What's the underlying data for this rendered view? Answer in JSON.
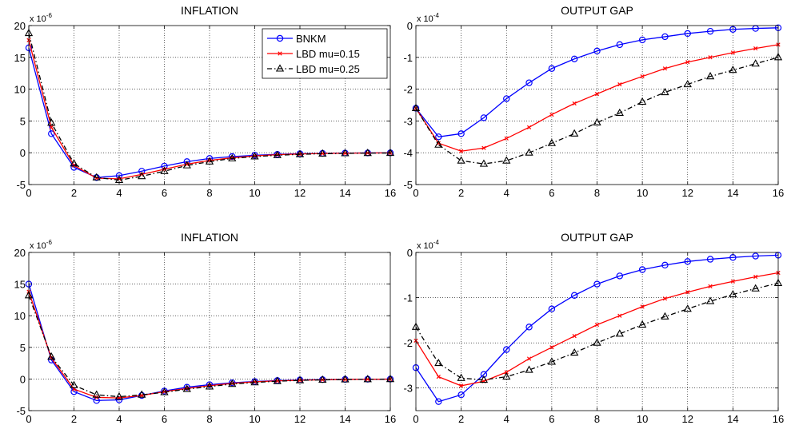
{
  "chart_data": [
    {
      "type": "line",
      "title": "INFLATION",
      "multiplier": {
        "base": "x 10",
        "exp": "-6"
      },
      "xlim": [
        0,
        16
      ],
      "ylim": [
        -5,
        20
      ],
      "xticks": [
        0,
        2,
        4,
        6,
        8,
        10,
        12,
        14,
        16
      ],
      "yticks": [
        -5,
        0,
        5,
        10,
        15,
        20
      ],
      "grid": true,
      "legend": {
        "placement": "top-right",
        "entries": [
          "BNKM",
          "LBD mu=0.15",
          "LBD mu=0.25"
        ]
      },
      "x": [
        0,
        1,
        2,
        3,
        4,
        5,
        6,
        7,
        8,
        9,
        10,
        11,
        12,
        13,
        14,
        15,
        16
      ],
      "series": [
        {
          "name": "BNKM",
          "color": "#0000ff",
          "marker": "circle",
          "dash": "solid",
          "values": [
            16.5,
            3.0,
            -2.3,
            -3.9,
            -3.6,
            -2.9,
            -2.1,
            -1.4,
            -0.9,
            -0.6,
            -0.4,
            -0.25,
            -0.15,
            -0.1,
            -0.05,
            -0.03,
            -0.02
          ]
        },
        {
          "name": "LBD mu=0.15",
          "color": "#ff0000",
          "marker": "x",
          "dash": "solid",
          "values": [
            17.7,
            4.0,
            -2.0,
            -4.0,
            -4.1,
            -3.4,
            -2.6,
            -1.8,
            -1.2,
            -0.8,
            -0.5,
            -0.3,
            -0.2,
            -0.12,
            -0.07,
            -0.04,
            -0.02
          ]
        },
        {
          "name": "LBD mu=0.25",
          "color": "#000000",
          "marker": "triangle",
          "dash": "dashdot",
          "values": [
            18.8,
            4.7,
            -1.7,
            -3.9,
            -4.3,
            -3.7,
            -2.9,
            -2.0,
            -1.4,
            -0.9,
            -0.6,
            -0.4,
            -0.25,
            -0.15,
            -0.1,
            -0.06,
            -0.04
          ]
        }
      ]
    },
    {
      "type": "line",
      "title": "OUTPUT GAP",
      "multiplier": {
        "base": "x 10",
        "exp": "-4"
      },
      "xlim": [
        0,
        16
      ],
      "ylim": [
        -5,
        0
      ],
      "xticks": [
        0,
        2,
        4,
        6,
        8,
        10,
        12,
        14,
        16
      ],
      "yticks": [
        -5,
        -4,
        -3,
        -2,
        -1,
        0
      ],
      "grid": true,
      "x": [
        0,
        1,
        2,
        3,
        4,
        5,
        6,
        7,
        8,
        9,
        10,
        11,
        12,
        13,
        14,
        15,
        16
      ],
      "series": [
        {
          "name": "BNKM",
          "color": "#0000ff",
          "marker": "circle",
          "dash": "solid",
          "values": [
            -2.6,
            -3.5,
            -3.4,
            -2.9,
            -2.3,
            -1.8,
            -1.35,
            -1.05,
            -0.8,
            -0.6,
            -0.45,
            -0.35,
            -0.25,
            -0.18,
            -0.12,
            -0.09,
            -0.07
          ]
        },
        {
          "name": "LBD mu=0.15",
          "color": "#ff0000",
          "marker": "x",
          "dash": "solid",
          "values": [
            -2.6,
            -3.7,
            -3.95,
            -3.85,
            -3.55,
            -3.2,
            -2.8,
            -2.45,
            -2.15,
            -1.85,
            -1.6,
            -1.35,
            -1.15,
            -1.0,
            -0.85,
            -0.72,
            -0.6
          ]
        },
        {
          "name": "LBD mu=0.25",
          "color": "#000000",
          "marker": "triangle",
          "dash": "dashdot",
          "values": [
            -2.6,
            -3.75,
            -4.25,
            -4.35,
            -4.25,
            -4.0,
            -3.7,
            -3.4,
            -3.05,
            -2.75,
            -2.4,
            -2.1,
            -1.85,
            -1.6,
            -1.4,
            -1.2,
            -1.0
          ]
        }
      ]
    },
    {
      "type": "line",
      "title": "INFLATION",
      "multiplier": {
        "base": "x 10",
        "exp": "-6"
      },
      "xlim": [
        0,
        16
      ],
      "ylim": [
        -5,
        20
      ],
      "xticks": [
        0,
        2,
        4,
        6,
        8,
        10,
        12,
        14,
        16
      ],
      "yticks": [
        -5,
        0,
        5,
        10,
        15,
        20
      ],
      "grid": true,
      "x": [
        0,
        1,
        2,
        3,
        4,
        5,
        6,
        7,
        8,
        9,
        10,
        11,
        12,
        13,
        14,
        15,
        16
      ],
      "series": [
        {
          "name": "BNKM",
          "color": "#0000ff",
          "marker": "circle",
          "dash": "solid",
          "values": [
            15.0,
            3.0,
            -2.0,
            -3.4,
            -3.3,
            -2.6,
            -1.9,
            -1.3,
            -0.9,
            -0.6,
            -0.4,
            -0.25,
            -0.15,
            -0.1,
            -0.06,
            -0.04,
            -0.02
          ]
        },
        {
          "name": "LBD mu=0.15",
          "color": "#ff0000",
          "marker": "x",
          "dash": "solid",
          "values": [
            13.8,
            3.3,
            -1.6,
            -2.9,
            -3.0,
            -2.6,
            -2.0,
            -1.5,
            -1.05,
            -0.7,
            -0.45,
            -0.3,
            -0.2,
            -0.12,
            -0.07,
            -0.04,
            -0.02
          ]
        },
        {
          "name": "LBD mu=0.25",
          "color": "#000000",
          "marker": "triangle",
          "dash": "dashdot",
          "values": [
            13.2,
            3.5,
            -1.0,
            -2.5,
            -2.8,
            -2.5,
            -2.1,
            -1.6,
            -1.2,
            -0.8,
            -0.55,
            -0.35,
            -0.22,
            -0.14,
            -0.08,
            -0.05,
            -0.03
          ]
        }
      ]
    },
    {
      "type": "line",
      "title": "OUTPUT GAP",
      "multiplier": {
        "base": "x 10",
        "exp": "-4"
      },
      "xlim": [
        0,
        16
      ],
      "ylim": [
        -3.5,
        0
      ],
      "xticks": [
        0,
        2,
        4,
        6,
        8,
        10,
        12,
        14,
        16
      ],
      "yticks": [
        -3,
        -2,
        -1,
        0
      ],
      "grid": true,
      "x": [
        0,
        1,
        2,
        3,
        4,
        5,
        6,
        7,
        8,
        9,
        10,
        11,
        12,
        13,
        14,
        15,
        16
      ],
      "series": [
        {
          "name": "BNKM",
          "color": "#0000ff",
          "marker": "circle",
          "dash": "solid",
          "values": [
            -2.55,
            -3.3,
            -3.15,
            -2.7,
            -2.15,
            -1.65,
            -1.25,
            -0.95,
            -0.7,
            -0.52,
            -0.38,
            -0.28,
            -0.2,
            -0.15,
            -0.11,
            -0.08,
            -0.06
          ]
        },
        {
          "name": "LBD mu=0.15",
          "color": "#ff0000",
          "marker": "x",
          "dash": "solid",
          "values": [
            -1.95,
            -2.75,
            -2.95,
            -2.85,
            -2.65,
            -2.35,
            -2.1,
            -1.85,
            -1.6,
            -1.4,
            -1.2,
            -1.02,
            -0.88,
            -0.75,
            -0.64,
            -0.54,
            -0.45
          ]
        },
        {
          "name": "LBD mu=0.25",
          "color": "#000000",
          "marker": "triangle",
          "dash": "dashdot",
          "values": [
            -1.65,
            -2.45,
            -2.78,
            -2.82,
            -2.75,
            -2.6,
            -2.42,
            -2.22,
            -2.0,
            -1.8,
            -1.6,
            -1.42,
            -1.25,
            -1.08,
            -0.93,
            -0.8,
            -0.68
          ]
        }
      ]
    }
  ]
}
